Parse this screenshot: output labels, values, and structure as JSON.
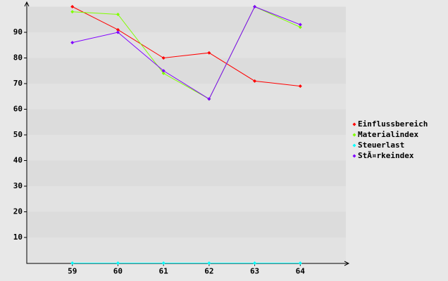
{
  "chart_data": {
    "type": "line",
    "x": [
      59,
      60,
      61,
      62,
      63,
      64
    ],
    "xlim": [
      58,
      65
    ],
    "xticks": [
      59,
      60,
      61,
      62,
      63,
      64
    ],
    "ylim": [
      0,
      100
    ],
    "yticks": [
      10,
      20,
      30,
      40,
      50,
      60,
      70,
      80,
      90
    ],
    "series": [
      {
        "name": "Einflussbereich",
        "color": "#ff0000",
        "values": [
          100,
          91,
          80,
          82,
          71,
          69
        ]
      },
      {
        "name": "Materialindex",
        "color": "#80ff00",
        "values": [
          98,
          97,
          74,
          64,
          100,
          92
        ]
      },
      {
        "name": "Steuerlast",
        "color": "#00ffff",
        "values": [
          0,
          0,
          0,
          0,
          0,
          0
        ]
      },
      {
        "name": "StÃ¤rkeindex",
        "color": "#8000ff",
        "values": [
          86,
          90,
          75,
          64,
          100,
          93
        ]
      }
    ],
    "legend": "right",
    "grid": true
  }
}
